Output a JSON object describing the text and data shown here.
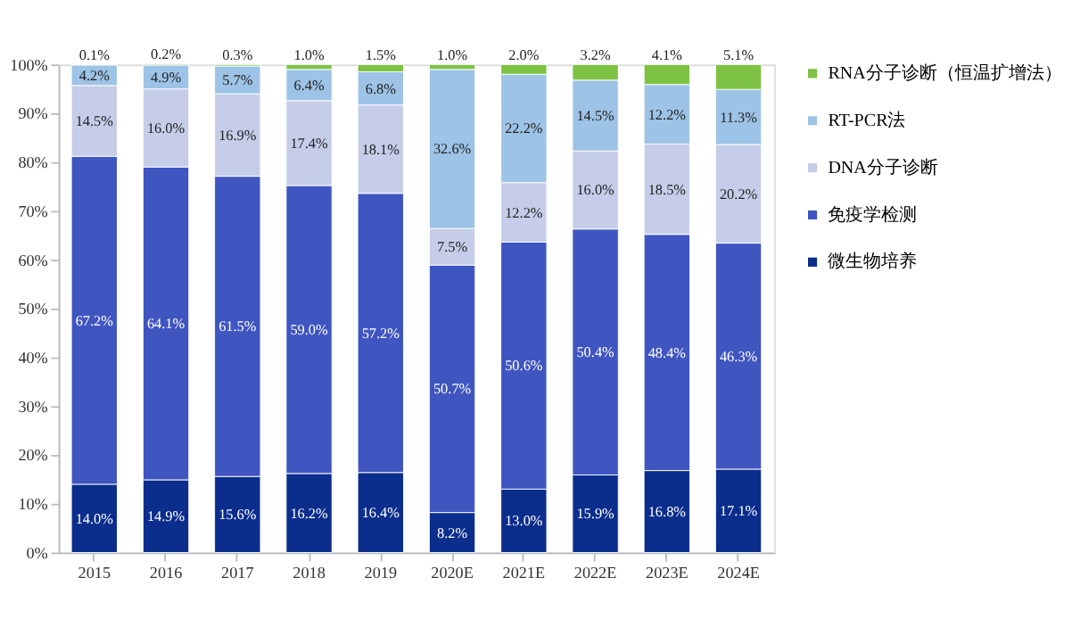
{
  "chart_data": {
    "type": "bar",
    "stacked": true,
    "legend": "right",
    "grid": false,
    "categories": [
      "2015",
      "2016",
      "2017",
      "2018",
      "2019",
      "2020E",
      "2021E",
      "2022E",
      "2023E",
      "2024E"
    ],
    "ylim": [
      0,
      100
    ],
    "yticks": [
      {
        "value": 0,
        "label": "0%"
      },
      {
        "value": 10,
        "label": "10%"
      },
      {
        "value": 20,
        "label": "20%"
      },
      {
        "value": 30,
        "label": "30%"
      },
      {
        "value": 40,
        "label": "40%"
      },
      {
        "value": 50,
        "label": "50%"
      },
      {
        "value": 60,
        "label": "60%"
      },
      {
        "value": 70,
        "label": "70%"
      },
      {
        "value": 80,
        "label": "80%"
      },
      {
        "value": 90,
        "label": "90%"
      },
      {
        "value": 100,
        "label": "100%"
      }
    ],
    "series": [
      {
        "name": "微生物培养",
        "color": "#0b2d8c",
        "values": [
          14.0,
          14.9,
          15.6,
          16.2,
          16.4,
          8.2,
          13.0,
          15.9,
          16.8,
          17.1
        ],
        "value_labels": [
          "14.0%",
          "14.9%",
          "15.6%",
          "16.2%",
          "16.4%",
          "8.2%",
          "13.0%",
          "15.9%",
          "16.8%",
          "17.1%"
        ]
      },
      {
        "name": "免疫学检测",
        "color": "#3f55c0",
        "values": [
          67.2,
          64.1,
          61.5,
          59.0,
          57.2,
          50.7,
          50.6,
          50.4,
          48.4,
          46.3
        ],
        "value_labels": [
          "67.2%",
          "64.1%",
          "61.5%",
          "59.0%",
          "57.2%",
          "50.7%",
          "50.6%",
          "50.4%",
          "48.4%",
          "46.3%"
        ]
      },
      {
        "name": "DNA分子诊断",
        "color": "#c6cde9",
        "values": [
          14.5,
          16.0,
          16.9,
          17.4,
          18.1,
          7.5,
          12.2,
          16.0,
          18.5,
          20.2
        ],
        "value_labels": [
          "14.5%",
          "16.0%",
          "16.9%",
          "17.4%",
          "18.1%",
          "7.5%",
          "12.2%",
          "16.0%",
          "18.5%",
          "20.2%"
        ]
      },
      {
        "name": "RT-PCR法",
        "color": "#9dc3e6",
        "values": [
          4.2,
          4.9,
          5.7,
          6.4,
          6.8,
          32.6,
          22.2,
          14.5,
          12.2,
          11.3
        ],
        "value_labels": [
          "4.2%",
          "4.9%",
          "5.7%",
          "6.4%",
          "6.8%",
          "32.6%",
          "22.2%",
          "14.5%",
          "12.2%",
          "11.3%"
        ]
      },
      {
        "name": "RNA分子诊断（恒温扩增法）",
        "color": "#7dc243",
        "values": [
          0.1,
          0.2,
          0.3,
          1.0,
          1.5,
          1.0,
          2.0,
          3.2,
          4.1,
          5.1
        ],
        "value_labels": [
          "0.1%",
          "0.2%",
          "0.3%",
          "1.0%",
          "1.5%",
          "1.0%",
          "2.0%",
          "3.2%",
          "4.1%",
          "5.1%"
        ]
      }
    ]
  }
}
